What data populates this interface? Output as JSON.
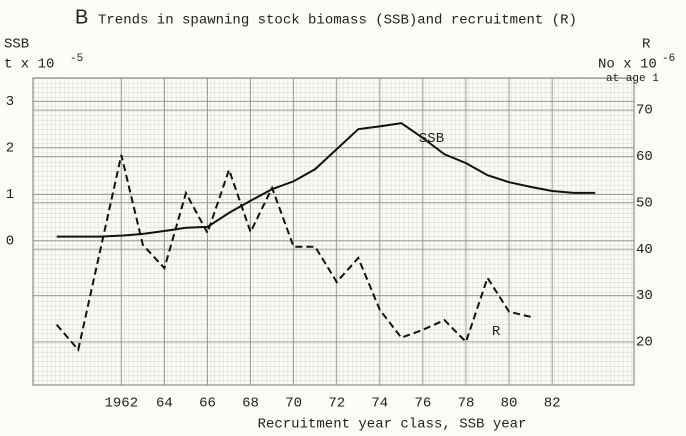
{
  "chart_data": {
    "type": "line",
    "panel": "B",
    "title": "Trends in spawning stock biomass (SSB)and recruitment (R)",
    "xlabel": "Recruitment year class, SSB year",
    "ylabel": {
      "name": "SSB",
      "unit": "t x 10",
      "exponent": "-5"
    },
    "y2label": {
      "name": "R",
      "unit": "No x 10",
      "exponent": "-6",
      "note": "at age 1"
    },
    "xlim": [
      1957.9,
      1985.8
    ],
    "xticks": [
      1962,
      {
        "value": 1964,
        "label": "64"
      },
      {
        "value": 1966,
        "label": "66"
      },
      {
        "value": 1968,
        "label": "68"
      },
      {
        "value": 1970,
        "label": "70"
      },
      {
        "value": 1972,
        "label": "72"
      },
      {
        "value": 1974,
        "label": "74"
      },
      {
        "value": 1976,
        "label": "76"
      },
      {
        "value": 1978,
        "label": "78"
      },
      {
        "value": 1980,
        "label": "80"
      },
      {
        "value": 1982,
        "label": "82"
      }
    ],
    "ylim": [
      -3.1,
      3.5
    ],
    "yticks": [
      0,
      1,
      2,
      3
    ],
    "y2lim": [
      10.7,
      76.9
    ],
    "y2ticks": [
      20,
      30,
      40,
      50,
      60,
      70
    ],
    "grid": true,
    "series": [
      {
        "name": "SSB",
        "color": "#111111",
        "dashed": false,
        "x": [
          1959,
          1960,
          1961,
          1962,
          1963,
          1964,
          1965,
          1966,
          1967,
          1968,
          1969,
          1970,
          1971,
          1972,
          1973,
          1974,
          1975,
          1976,
          1977,
          1978,
          1979,
          1980,
          1981,
          1982,
          1983,
          1984
        ],
        "values": [
          0.09,
          0.09,
          0.09,
          0.11,
          0.15,
          0.21,
          0.28,
          0.3,
          0.6,
          0.86,
          1.11,
          1.28,
          1.54,
          1.97,
          2.4,
          2.46,
          2.53,
          2.21,
          1.86,
          1.67,
          1.41,
          1.26,
          1.16,
          1.07,
          1.03,
          1.03
        ]
      },
      {
        "name": "R",
        "color": "#111111",
        "dashed": true,
        "axis": "y2",
        "x": [
          1959,
          1960,
          1962,
          1963,
          1964,
          1965,
          1966,
          1967,
          1968,
          1969,
          1970,
          1971,
          1972,
          1973,
          1974,
          1975,
          1976,
          1977,
          1978,
          1979,
          1980,
          1981
        ],
        "values": [
          23.7,
          18.3,
          60.3,
          40.9,
          35.9,
          52.1,
          43.5,
          57.1,
          43.7,
          53.2,
          40.5,
          40.5,
          32.9,
          38.1,
          26.9,
          20.9,
          22.6,
          24.7,
          20.0,
          33.8,
          26.5,
          25.4
        ]
      }
    ],
    "annotations": [
      {
        "text": "SSB",
        "x": 1976.4,
        "y": 2.2
      },
      {
        "text": "R",
        "x": 1979.4,
        "y": -1.95
      }
    ]
  }
}
